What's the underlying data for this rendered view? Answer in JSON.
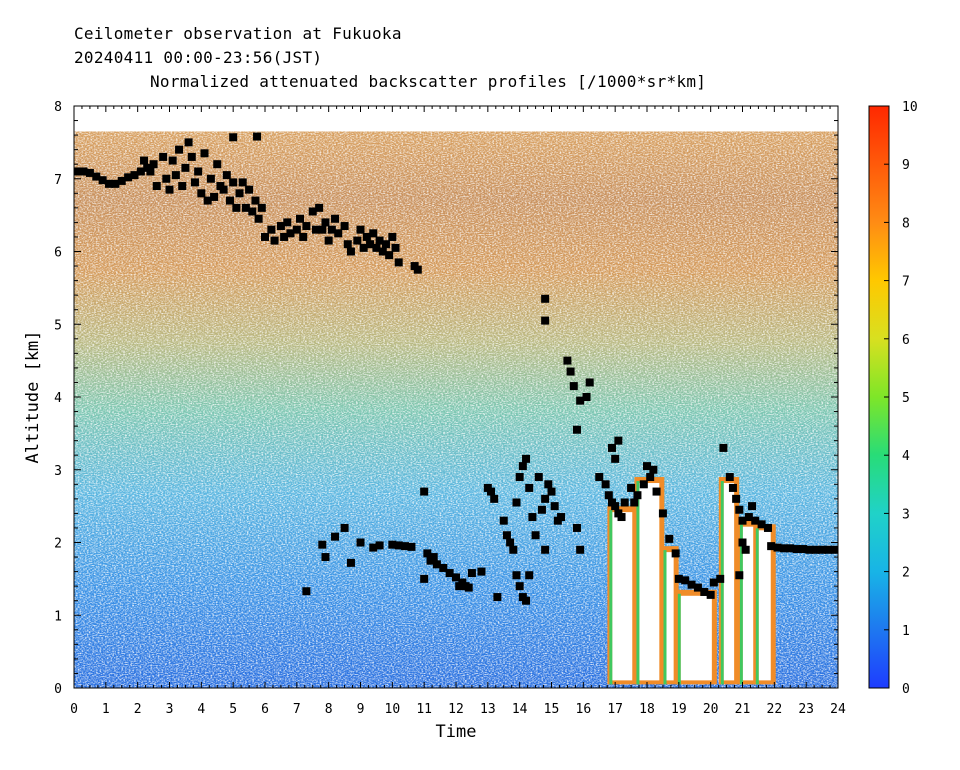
{
  "header": {
    "line1": "Ceilometer observation at Fukuoka",
    "line2": "20240411  00:00-23:56(JST)",
    "line3": "Normalized attenuated backscatter profiles [/1000*sr*km]"
  },
  "chart_data": {
    "type": "heatmap",
    "xlabel": "Time",
    "ylabel": "Altitude [km]",
    "xlim": [
      0,
      24
    ],
    "ylim": [
      0,
      8
    ],
    "x_ticks": [
      "0",
      "1",
      "2",
      "3",
      "4",
      "5",
      "6",
      "7",
      "8",
      "9",
      "10",
      "11",
      "12",
      "13",
      "14",
      "15",
      "16",
      "17",
      "18",
      "19",
      "20",
      "21",
      "22",
      "23",
      "24"
    ],
    "y_ticks": [
      "0",
      "1",
      "2",
      "3",
      "4",
      "5",
      "6",
      "7",
      "8"
    ],
    "colorbar": {
      "range": [
        0,
        10
      ],
      "ticks": [
        "0",
        "1",
        "2",
        "3",
        "4",
        "5",
        "6",
        "7",
        "8",
        "9",
        "10"
      ],
      "colors": [
        "#1e3cff",
        "#1e78f0",
        "#18b4e6",
        "#20d2c8",
        "#28dc78",
        "#7ee628",
        "#d8e020",
        "#ffc800",
        "#ff8c14",
        "#ff5a0a",
        "#ff2800"
      ]
    },
    "data_top_km": 7.65,
    "cloud_base_series": {
      "name": "",
      "marker": "black-square",
      "points": [
        [
          0.1,
          7.1
        ],
        [
          0.3,
          7.1
        ],
        [
          0.5,
          7.08
        ],
        [
          0.7,
          7.03
        ],
        [
          0.9,
          6.98
        ],
        [
          1.1,
          6.93
        ],
        [
          1.3,
          6.93
        ],
        [
          1.5,
          6.97
        ],
        [
          1.7,
          7.02
        ],
        [
          1.9,
          7.05
        ],
        [
          2.1,
          7.1
        ],
        [
          2.3,
          7.15
        ],
        [
          2.5,
          7.2
        ],
        [
          2.6,
          6.9
        ],
        [
          2.8,
          7.3
        ],
        [
          2.9,
          7.0
        ],
        [
          3.0,
          6.85
        ],
        [
          3.1,
          7.25
        ],
        [
          3.2,
          7.05
        ],
        [
          3.3,
          7.4
        ],
        [
          3.4,
          6.9
        ],
        [
          3.5,
          7.15
        ],
        [
          3.6,
          7.5
        ],
        [
          3.7,
          7.3
        ],
        [
          3.8,
          6.95
        ],
        [
          3.9,
          7.1
        ],
        [
          4.0,
          6.8
        ],
        [
          4.1,
          7.35
        ],
        [
          4.2,
          6.7
        ],
        [
          4.3,
          7.0
        ],
        [
          4.4,
          6.75
        ],
        [
          4.5,
          7.2
        ],
        [
          4.6,
          6.9
        ],
        [
          4.7,
          6.85
        ],
        [
          4.8,
          7.05
        ],
        [
          4.9,
          6.7
        ],
        [
          5.0,
          6.95
        ],
        [
          5.1,
          6.6
        ],
        [
          5.2,
          6.8
        ],
        [
          5.3,
          6.95
        ],
        [
          5.4,
          6.6
        ],
        [
          5.5,
          6.85
        ],
        [
          5.6,
          6.55
        ],
        [
          5.7,
          6.7
        ],
        [
          5.8,
          6.45
        ],
        [
          5.9,
          6.6
        ],
        [
          6.0,
          6.2
        ],
        [
          6.2,
          6.3
        ],
        [
          6.3,
          6.15
        ],
        [
          6.5,
          6.35
        ],
        [
          6.6,
          6.2
        ],
        [
          6.7,
          6.4
        ],
        [
          6.8,
          6.25
        ],
        [
          7.0,
          6.3
        ],
        [
          7.1,
          6.45
        ],
        [
          7.2,
          6.2
        ],
        [
          7.3,
          6.35
        ],
        [
          7.5,
          6.55
        ],
        [
          7.6,
          6.3
        ],
        [
          7.7,
          6.6
        ],
        [
          7.8,
          6.3
        ],
        [
          7.9,
          6.4
        ],
        [
          8.0,
          6.15
        ],
        [
          8.1,
          6.3
        ],
        [
          8.2,
          6.45
        ],
        [
          8.3,
          6.25
        ],
        [
          8.5,
          6.35
        ],
        [
          8.6,
          6.1
        ],
        [
          8.7,
          6.0
        ],
        [
          8.9,
          6.15
        ],
        [
          9.0,
          6.3
        ],
        [
          9.1,
          6.05
        ],
        [
          9.2,
          6.2
        ],
        [
          9.3,
          6.1
        ],
        [
          9.4,
          6.25
        ],
        [
          9.5,
          6.05
        ],
        [
          9.6,
          6.15
        ],
        [
          9.7,
          6.0
        ],
        [
          9.8,
          6.1
        ],
        [
          9.9,
          5.95
        ],
        [
          10.0,
          6.2
        ],
        [
          10.1,
          6.05
        ],
        [
          10.2,
          5.85
        ],
        [
          10.7,
          5.8
        ],
        [
          10.8,
          5.75
        ],
        [
          5.75,
          7.58
        ],
        [
          5.0,
          7.57
        ],
        [
          2.2,
          7.25
        ],
        [
          2.4,
          7.1
        ],
        [
          11.0,
          2.7
        ],
        [
          11.2,
          1.75
        ],
        [
          11.4,
          1.7
        ],
        [
          11.6,
          1.65
        ],
        [
          11.8,
          1.58
        ],
        [
          12.0,
          1.52
        ],
        [
          12.2,
          1.45
        ],
        [
          12.4,
          1.38
        ],
        [
          12.5,
          1.58
        ],
        [
          12.8,
          1.6
        ],
        [
          10.0,
          1.97
        ],
        [
          10.2,
          1.96
        ],
        [
          10.4,
          1.95
        ],
        [
          10.6,
          1.94
        ],
        [
          9.6,
          1.96
        ],
        [
          9.4,
          1.93
        ],
        [
          9.0,
          2.0
        ],
        [
          8.7,
          1.72
        ],
        [
          8.5,
          2.2
        ],
        [
          8.2,
          2.08
        ],
        [
          7.9,
          1.8
        ],
        [
          7.8,
          1.97
        ],
        [
          7.3,
          1.33
        ],
        [
          11.0,
          1.5
        ],
        [
          11.1,
          1.85
        ],
        [
          11.3,
          1.8
        ],
        [
          12.1,
          1.4
        ],
        [
          12.3,
          1.4
        ],
        [
          13.0,
          2.75
        ],
        [
          13.1,
          2.7
        ],
        [
          13.2,
          2.6
        ],
        [
          13.3,
          1.25
        ],
        [
          13.5,
          2.3
        ],
        [
          13.6,
          2.1
        ],
        [
          13.7,
          2.0
        ],
        [
          13.8,
          1.9
        ],
        [
          13.9,
          1.55
        ],
        [
          14.0,
          1.4
        ],
        [
          14.1,
          1.25
        ],
        [
          14.2,
          1.2
        ],
        [
          14.3,
          1.55
        ],
        [
          14.0,
          2.9
        ],
        [
          14.1,
          3.05
        ],
        [
          14.2,
          3.15
        ],
        [
          14.3,
          2.75
        ],
        [
          13.9,
          2.55
        ],
        [
          14.4,
          2.35
        ],
        [
          14.5,
          2.1
        ],
        [
          14.7,
          2.45
        ],
        [
          14.8,
          2.6
        ],
        [
          14.6,
          2.9
        ],
        [
          14.9,
          2.8
        ],
        [
          15.0,
          2.7
        ],
        [
          15.1,
          2.5
        ],
        [
          15.2,
          2.3
        ],
        [
          14.8,
          1.9
        ],
        [
          15.3,
          2.35
        ],
        [
          15.8,
          2.2
        ],
        [
          15.9,
          1.9
        ],
        [
          14.8,
          5.35
        ],
        [
          14.8,
          5.05
        ],
        [
          15.5,
          4.5
        ],
        [
          15.6,
          4.35
        ],
        [
          15.7,
          4.15
        ],
        [
          15.9,
          3.95
        ],
        [
          16.1,
          4.0
        ],
        [
          16.2,
          4.2
        ],
        [
          15.8,
          3.55
        ],
        [
          16.5,
          2.9
        ],
        [
          16.7,
          2.8
        ],
        [
          16.8,
          2.65
        ],
        [
          16.9,
          2.55
        ],
        [
          17.0,
          2.5
        ],
        [
          17.1,
          2.4
        ],
        [
          17.2,
          2.35
        ],
        [
          16.9,
          3.3
        ],
        [
          17.0,
          3.15
        ],
        [
          17.1,
          3.4
        ],
        [
          17.3,
          2.55
        ],
        [
          17.5,
          2.75
        ],
        [
          17.7,
          2.65
        ],
        [
          17.9,
          2.8
        ],
        [
          18.0,
          3.05
        ],
        [
          18.2,
          3.0
        ],
        [
          18.1,
          2.9
        ],
        [
          18.3,
          2.7
        ],
        [
          17.6,
          2.55
        ],
        [
          18.5,
          2.4
        ],
        [
          18.7,
          2.05
        ],
        [
          18.9,
          1.85
        ],
        [
          19.0,
          1.5
        ],
        [
          19.2,
          1.48
        ],
        [
          19.4,
          1.42
        ],
        [
          19.6,
          1.38
        ],
        [
          19.8,
          1.32
        ],
        [
          20.0,
          1.28
        ],
        [
          20.1,
          1.45
        ],
        [
          20.3,
          1.5
        ],
        [
          20.4,
          3.3
        ],
        [
          20.6,
          2.9
        ],
        [
          20.7,
          2.75
        ],
        [
          20.8,
          2.6
        ],
        [
          20.9,
          2.45
        ],
        [
          21.0,
          2.3
        ],
        [
          21.2,
          2.35
        ],
        [
          21.4,
          2.3
        ],
        [
          21.6,
          2.25
        ],
        [
          21.8,
          2.2
        ],
        [
          21.9,
          1.95
        ],
        [
          22.1,
          1.93
        ],
        [
          22.3,
          1.92
        ],
        [
          22.5,
          1.92
        ],
        [
          22.7,
          1.91
        ],
        [
          22.9,
          1.91
        ],
        [
          23.1,
          1.9
        ],
        [
          23.3,
          1.9
        ],
        [
          23.5,
          1.9
        ],
        [
          23.7,
          1.9
        ],
        [
          23.9,
          1.9
        ],
        [
          21.0,
          2.0
        ],
        [
          21.1,
          1.9
        ],
        [
          20.9,
          1.55
        ],
        [
          21.3,
          2.5
        ]
      ]
    },
    "low_cloud_columns": [
      {
        "x0": 16.85,
        "x1": 17.6,
        "top": 2.5
      },
      {
        "x0": 17.7,
        "x1": 18.45,
        "top": 2.9
      },
      {
        "x0": 18.55,
        "x1": 18.9,
        "top": 1.95
      },
      {
        "x0": 19.0,
        "x1": 20.1,
        "top": 1.35
      },
      {
        "x0": 20.35,
        "x1": 20.8,
        "top": 2.9
      },
      {
        "x0": 20.95,
        "x1": 21.4,
        "top": 2.3
      },
      {
        "x0": 21.45,
        "x1": 21.95,
        "top": 2.25
      }
    ]
  }
}
